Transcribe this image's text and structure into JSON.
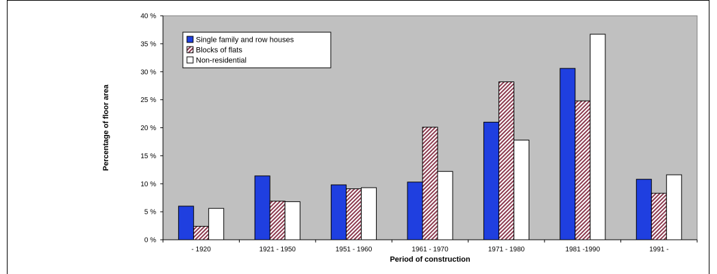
{
  "chart_data": {
    "type": "bar",
    "title": "",
    "xlabel": "Period of construction",
    "ylabel": "Percentage of floor area",
    "categories": [
      "- 1920",
      "1921 - 1950",
      "1951 - 1960",
      "1961 - 1970",
      "1971 - 1980",
      "1981 -1990",
      "1991 -"
    ],
    "series": [
      {
        "name": "Single family and row houses",
        "values": [
          6.0,
          11.4,
          9.8,
          10.3,
          21.0,
          30.6,
          10.8
        ],
        "color": "#1f3fe0",
        "pattern": "solid"
      },
      {
        "name": "Blocks of flats",
        "values": [
          2.4,
          6.9,
          9.1,
          20.1,
          28.2,
          24.8,
          8.3
        ],
        "color": "#8c3a4f",
        "pattern": "hatch"
      },
      {
        "name": "Non-residential",
        "values": [
          5.6,
          6.8,
          9.3,
          12.2,
          17.8,
          36.7,
          11.6
        ],
        "color": "#ffffff",
        "pattern": "solid"
      }
    ],
    "yticks": [
      "0 %",
      "5 %",
      "10 %",
      "15 %",
      "20 %",
      "25 %",
      "30 %",
      "35 %",
      "40 %"
    ],
    "ylim": [
      0,
      40
    ],
    "grid": false,
    "plot_background": "#c0c0c0",
    "legend_position": "top-left"
  }
}
